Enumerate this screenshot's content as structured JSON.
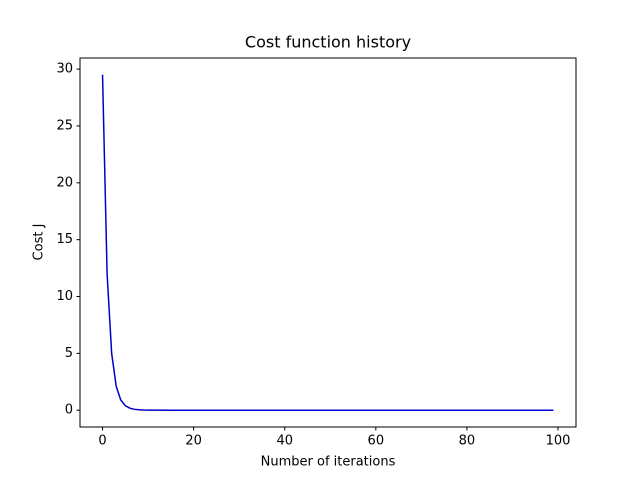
{
  "chart_data": {
    "type": "line",
    "title": "Cost function history",
    "x_label": "Number of iterations",
    "y_label": "Cost J",
    "x": [
      0,
      1,
      2,
      3,
      4,
      5,
      6,
      7,
      8,
      9,
      10,
      12,
      15,
      20,
      40,
      60,
      80,
      99
    ],
    "series": [
      {
        "name": "cost",
        "color": "#0000cc",
        "values": [
          29.5,
          12,
          5,
          2.1,
          0.9,
          0.4,
          0.18,
          0.08,
          0.04,
          0.02,
          0.01,
          0.005,
          0.002,
          0,
          0,
          0,
          0,
          0
        ]
      }
    ],
    "xlim": [
      -4.95,
      103.95
    ],
    "xticks": [
      0,
      20,
      40,
      60,
      80,
      100
    ],
    "ylim": [
      -1.475,
      30.975
    ],
    "yticks": [
      0,
      5,
      10,
      15,
      20,
      25,
      30
    ],
    "grid": false,
    "legend": false
  }
}
